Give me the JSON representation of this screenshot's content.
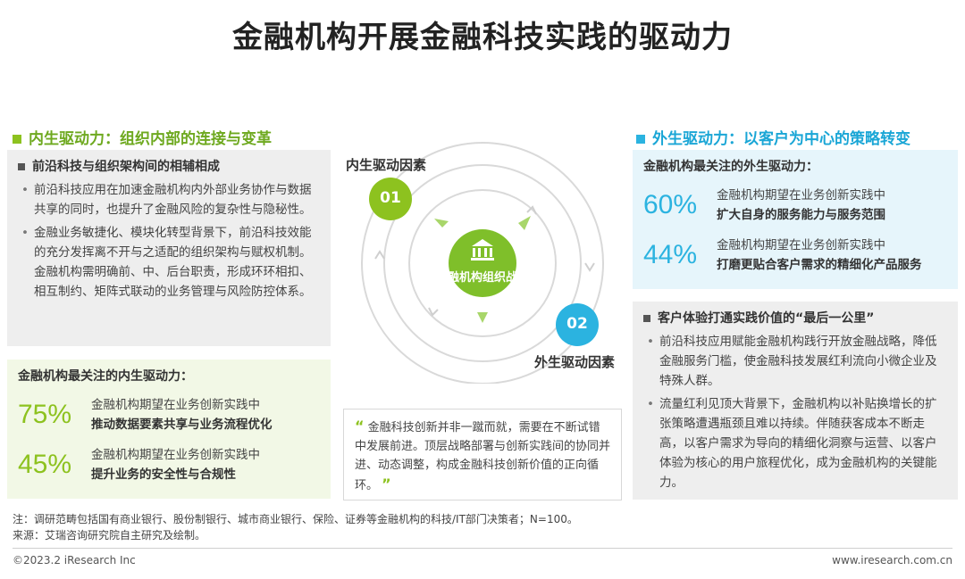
{
  "title": "金融机构开展金融科技实践的驱动力",
  "left": {
    "section_title": "内生驱动力：组织内部的连接与变革",
    "box_head": "前沿科技与组织架构间的相辅相成",
    "bullets": [
      "前沿科技应用在加速金融机构内外部业务协作与数据共享的同时，也提升了金融风险的复杂性与隐秘性。",
      "金融业务敏捷化、模块化转型背景下，前沿科技效能的充分发挥离不开与之适配的组织架构与赋权机制。金融机构需明确前、中、后台职责，形成环环相扣、相互制约、矩阵式联动的业务管理与风险防控体系。"
    ],
    "stats_head": "金融机构最关注的内生驱动力：",
    "stats": [
      {
        "pct": "75%",
        "line1": "金融机构期望在业务创新实践中",
        "line2": "推动数据要素共享与业务流程优化"
      },
      {
        "pct": "45%",
        "line1": "金融机构期望在业务创新实践中",
        "line2": "提升业务的安全性与合规性"
      }
    ]
  },
  "right": {
    "section_title": "外生驱动力：以客户为中心的策略转变",
    "stats_head": "金融机构最关注的外生驱动力：",
    "stats": [
      {
        "pct": "60%",
        "line1": "金融机构期望在业务创新实践中",
        "line2": "扩大自身的服务能力与服务范围"
      },
      {
        "pct": "44%",
        "line1": "金融机构期望在业务创新实践中",
        "line2": "打磨更贴合客户需求的精细化产品服务"
      }
    ],
    "box_head": "客户体验打通实践价值的“最后一公里”",
    "bullets": [
      "前沿科技应用赋能金融机构践行开放金融战略，降低金融服务门槛，使金融科技发展红利流向小微企业及特殊人群。",
      "流量红利见顶大背景下，金融机构以补贴换增长的扩张策略遭遇瓶颈且难以持续。伴随获客成本不断走高，以客户需求为导向的精细化洞察与运营、以客户体验为核心的用户旅程优化，成为金融机构的关键能力。"
    ]
  },
  "diagram": {
    "center_label": "金融机构组织战略",
    "inner_badge": "01",
    "inner_label": "内生驱动因素",
    "outer_badge": "02",
    "outer_label": "外生驱动因素",
    "bank_icon": "bank-icon",
    "colors": {
      "green": "#8dc21f",
      "blue": "#2bb3e0"
    }
  },
  "quote": "金融科技创新并非一蹴而就，需要在不断试错中发展前进。顶层战略部署与创新实践间的协同并进、动态调整，构成金融科技创新价值的正向循环。",
  "quote_open": "“",
  "quote_close": "”",
  "note_line1": "注：调研范畴包括国有商业银行、股份制银行、城市商业银行、保险、证券等金融机构的科技/IT部门决策者；N=100。",
  "note_line2": "来源：艾瑞咨询研究院自主研究及绘制。",
  "footer_left": "©2023.2 iResearch Inc",
  "footer_right": "www.iresearch.com.cn"
}
